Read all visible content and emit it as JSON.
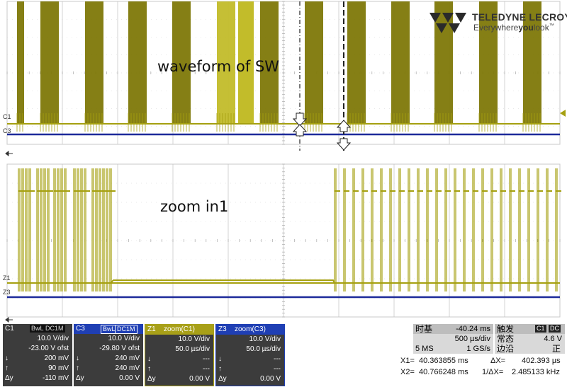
{
  "annotations": {
    "top": "waveform of SW",
    "bottom": "zoom in1"
  },
  "logo": {
    "brand": "TELEDYNE LECROY",
    "tag_pre": "Everywhere",
    "tag_bold": "you",
    "tag_post": "look",
    "tm": "™"
  },
  "channel_labels": {
    "c1": "C1",
    "c3": "C3",
    "z1": "Z1",
    "z3": "Z3"
  },
  "panels": [
    {
      "name": "C1",
      "badges": [
        "BwL",
        "DC1M"
      ],
      "rows": [
        [
          "",
          "10.0 V/div"
        ],
        [
          "",
          "-23.00 V ofst"
        ],
        [
          "↓",
          "200 mV"
        ],
        [
          "↑",
          "90 mV"
        ],
        [
          "Δy",
          "-110 mV"
        ]
      ],
      "head_color": "#3c3c3c",
      "text_color": "#ffffff"
    },
    {
      "name": "C3",
      "badges": [
        "BwL",
        "DC1M"
      ],
      "rows": [
        [
          "",
          "10.0 V/div"
        ],
        [
          "",
          "-29.80 V ofst"
        ],
        [
          "↓",
          "240 mV"
        ],
        [
          "↑",
          "240 mV"
        ],
        [
          "Δy",
          "0.00 V"
        ]
      ],
      "head_color": "#1f3fb4",
      "text_color": "#ffffff"
    },
    {
      "name": "Z1",
      "title": "zoom(C1)",
      "rows": [
        [
          "",
          "10.0 V/div"
        ],
        [
          "",
          "50.0 µs/div"
        ],
        [
          "↓",
          "---"
        ],
        [
          "↑",
          "---"
        ],
        [
          "Δy",
          "0.00 V"
        ]
      ],
      "head_color": "#a8a018",
      "text_color": "#ffffff"
    },
    {
      "name": "Z3",
      "title": "zoom(C3)",
      "rows": [
        [
          "",
          "10.0 V/div"
        ],
        [
          "",
          "50.0 µs/div"
        ],
        [
          "↓",
          "---"
        ],
        [
          "↑",
          "---"
        ],
        [
          "Δy",
          "0.00 V"
        ]
      ],
      "head_color": "#1f3fb4",
      "text_color": "#ffffff"
    }
  ],
  "timebase": {
    "label": "时基",
    "offset": "-40.24 ms",
    "div": "500 µs/div",
    "samples": "5 MS",
    "rate": "1 GS/s"
  },
  "trigger": {
    "label": "触发",
    "badges": [
      "C1",
      "DC"
    ],
    "mode": "常态",
    "level": "4.6 V",
    "edge_label": "边沿",
    "edge": "正"
  },
  "cursors": {
    "x1_label": "X1=",
    "x1": "40.363855 ms",
    "dx_label": "ΔX=",
    "dx": "402.393 µs",
    "x2_label": "X2=",
    "x2": "40.766248 ms",
    "inv_label": "1/ΔX=",
    "inv": "2.485133 kHz"
  },
  "colors": {
    "c1": "#a5a010",
    "c1_dark": "#7e7808",
    "c1_light": "#c2bc2a",
    "c3": "#1d2a9a",
    "grid": "#b8b8b8"
  }
}
